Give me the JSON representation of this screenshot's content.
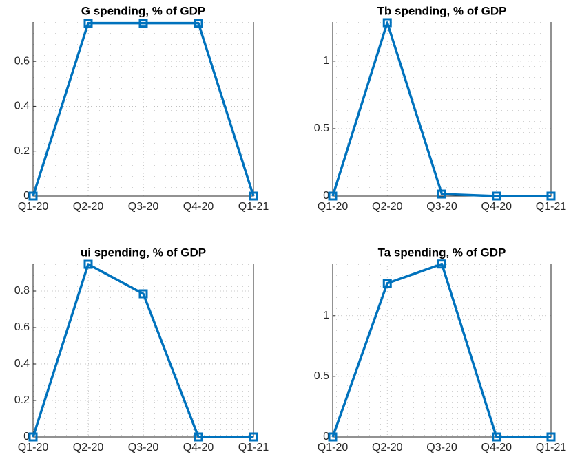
{
  "chart_data": [
    {
      "type": "line",
      "title": "G spending, % of GDP",
      "categories": [
        "Q1-20",
        "Q2-20",
        "Q3-20",
        "Q4-20",
        "Q1-21"
      ],
      "series": [
        {
          "name": "G",
          "color": "#0072bd",
          "values": [
            0,
            0.77,
            0.77,
            0.77,
            0
          ]
        }
      ],
      "ylim": [
        0,
        0.775
      ],
      "yticks": [
        0,
        0.2,
        0.4,
        0.6
      ],
      "grid": true
    },
    {
      "type": "line",
      "title": "Tb spending, % of GDP",
      "categories": [
        "Q1-20",
        "Q2-20",
        "Q3-20",
        "Q4-20",
        "Q1-21"
      ],
      "series": [
        {
          "name": "Tb",
          "color": "#0072bd",
          "values": [
            0,
            1.285,
            0.015,
            0,
            0
          ]
        }
      ],
      "ylim": [
        0,
        1.29
      ],
      "yticks": [
        0,
        0.5,
        1
      ],
      "grid": true
    },
    {
      "type": "line",
      "title": "ui spending, % of GDP",
      "categories": [
        "Q1-20",
        "Q2-20",
        "Q3-20",
        "Q4-20",
        "Q1-21"
      ],
      "series": [
        {
          "name": "ui",
          "color": "#0072bd",
          "values": [
            0,
            0.947,
            0.785,
            0,
            0
          ]
        }
      ],
      "ylim": [
        0,
        0.951
      ],
      "yticks": [
        0,
        0.2,
        0.4,
        0.6,
        0.8
      ],
      "grid": true
    },
    {
      "type": "line",
      "title": "Ta spending, % of GDP",
      "categories": [
        "Q1-20",
        "Q2-20",
        "Q3-20",
        "Q4-20",
        "Q1-21"
      ],
      "series": [
        {
          "name": "Ta",
          "color": "#0072bd",
          "values": [
            0,
            1.267,
            1.426,
            0,
            0
          ]
        }
      ],
      "ylim": [
        0,
        1.43
      ],
      "yticks": [
        0,
        0.5,
        1
      ],
      "grid": true
    }
  ]
}
